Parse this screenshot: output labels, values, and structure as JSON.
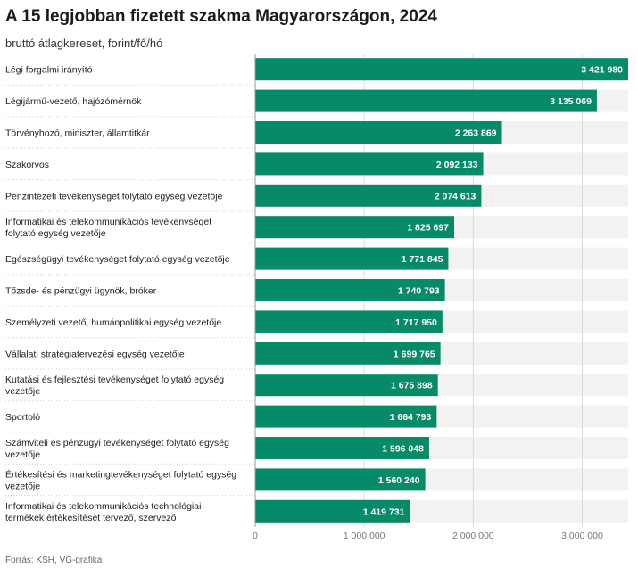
{
  "title": "A 15 legjobban fizetett szakma Magyarországon, 2024",
  "subtitle": "bruttó átlagkereset, forint/fő/hó",
  "source": "Forrás: KSH, VG-grafika",
  "colors": {
    "bar": "#078a68",
    "track": "#f2f2f2",
    "grid": "#d9d9d9",
    "label_text": "#ffffff"
  },
  "chart_data": {
    "type": "bar",
    "orientation": "horizontal",
    "categories": [
      [
        "Légi forgalmi irányító"
      ],
      [
        "Légijármű-vezető, hajózómérnök"
      ],
      [
        "Törvényhozó, miniszter, államtitkár"
      ],
      [
        "Szakorvos"
      ],
      [
        "Pénzintézeti tevékenységet folytató egység vezetője"
      ],
      [
        "Informatikai és telekommunikációs tevékenységet",
        "folytató egység vezetője"
      ],
      [
        "Egészségügyi tevékenységet folytató egység vezetője"
      ],
      [
        "Tőzsde- és pénzügyi ügynök, bróker"
      ],
      [
        "Személyzeti vezető, humánpolitikai egység vezetője"
      ],
      [
        "Vállalati stratégiatervezési egység vezetője"
      ],
      [
        "Kutatási és fejlesztési tevékenységet folytató egység",
        "vezetője"
      ],
      [
        "Sportoló"
      ],
      [
        "Számviteli és pénzügyi tevékenységet folytató egység",
        "vezetője"
      ],
      [
        "Értékesítési és marketingtevékenységet folytató egység",
        "vezetője"
      ],
      [
        "Informatikai és telekommunikációs technológiai",
        "termékek értékesítését tervező, szervező"
      ]
    ],
    "values": [
      3421980,
      3135069,
      2263869,
      2092133,
      2074613,
      1825697,
      1771845,
      1740793,
      1717950,
      1699765,
      1675898,
      1664793,
      1596048,
      1560240,
      1419731
    ],
    "value_labels": [
      "3 421 980",
      "3 135 069",
      "2 263 869",
      "2 092 133",
      "2 074 613",
      "1 825 697",
      "1 771 845",
      "1 740 793",
      "1 717 950",
      "1 699 765",
      "1 675 898",
      "1 664 793",
      "1 596 048",
      "1 560 240",
      "1 419 731"
    ],
    "xlim": [
      0,
      3421980
    ],
    "xticks": [
      0,
      1000000,
      2000000,
      3000000
    ],
    "xtick_labels": [
      "0",
      "1 000 000",
      "2 000 000",
      "3 000 000"
    ],
    "grid": true
  }
}
